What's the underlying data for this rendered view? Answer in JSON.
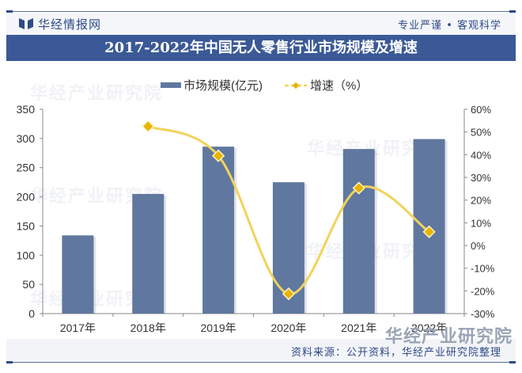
{
  "header": {
    "brand_name": "华经情报网",
    "slogan": "专业严谨 • 客观科学",
    "title": "2017-2022年中国无人零售行业市场规模及增速"
  },
  "footer": {
    "source": "资料来源：公开资料，华经产业研究院整理",
    "watermark": "华经产业研究院"
  },
  "colors": {
    "bar": "#60789f",
    "line": "#f2d35a",
    "marker": "#e8b400",
    "title_bar": "#3a5996",
    "brand": "#2f4a86"
  },
  "chart_data": {
    "type": "bar+line",
    "title": "2017-2022年中国无人零售行业市场规模及增速",
    "categories": [
      "2017年",
      "2018年",
      "2019年",
      "2020年",
      "2021年",
      "2022年"
    ],
    "series": [
      {
        "name": "市场规模(亿元)",
        "type": "bar",
        "axis": "left",
        "values": [
          134,
          205,
          286,
          225,
          282,
          299
        ]
      },
      {
        "name": "增速（%）",
        "type": "line",
        "axis": "right",
        "values": [
          null,
          52.5,
          39.5,
          -21.3,
          25.3,
          6.0
        ]
      }
    ],
    "left_axis": {
      "min": 0,
      "max": 350,
      "step": 50,
      "ticks": [
        "0",
        "50",
        "100",
        "150",
        "200",
        "250",
        "300",
        "350"
      ]
    },
    "right_axis": {
      "min": -30,
      "max": 60,
      "step": 10,
      "ticks": [
        "-30%",
        "-20%",
        "-10%",
        "0%",
        "10%",
        "20%",
        "30%",
        "40%",
        "50%",
        "60%"
      ]
    },
    "legend": {
      "position": "top",
      "items": [
        "市场规模(亿元)",
        "增速（%）"
      ]
    },
    "grid": false,
    "xlabel": "",
    "ylabel": ""
  }
}
